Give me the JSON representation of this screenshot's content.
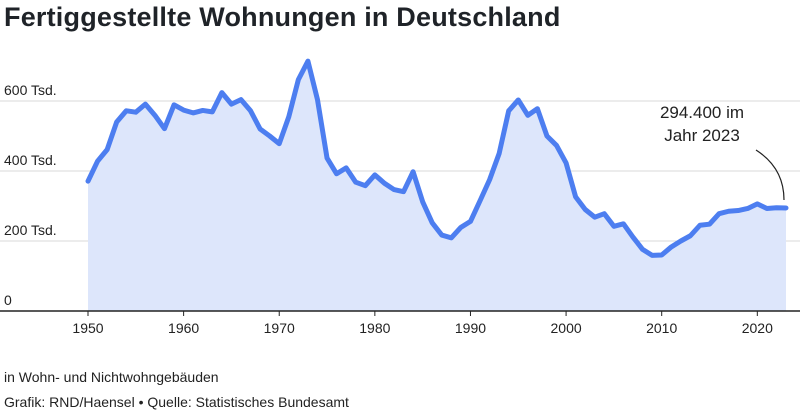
{
  "header": {
    "title": "Fertiggestellte Wohnungen in Deutschland"
  },
  "footer": {
    "note": "in Wohn- und Nichtwohngebäuden",
    "source": "Grafik: RND/Haensel • Quelle: Statistisches Bundesamt"
  },
  "chart_data": {
    "type": "area",
    "title": "Fertiggestellte Wohnungen in Deutschland",
    "xlabel": "",
    "ylabel": "",
    "xlim": [
      1950,
      2023
    ],
    "ylim": [
      0,
      760000
    ],
    "x_ticks": [
      1950,
      1960,
      1970,
      1980,
      1990,
      2000,
      2010,
      2020
    ],
    "y_ticks": [
      0,
      200000,
      400000,
      600000
    ],
    "y_tick_labels": [
      "0",
      "200 Tsd.",
      "400 Tsd.",
      "600 Tsd."
    ],
    "grid": true,
    "colors": {
      "line": "#4d7ef0",
      "fill": "#dde6fb",
      "grid": "#d9d9d9"
    },
    "annotation": {
      "x": 2023,
      "y": 294400,
      "lines": [
        "294.400 im",
        "Jahr 2023"
      ]
    },
    "x": [
      1950,
      1951,
      1952,
      1953,
      1954,
      1955,
      1956,
      1957,
      1958,
      1959,
      1960,
      1961,
      1962,
      1963,
      1964,
      1965,
      1966,
      1967,
      1968,
      1969,
      1970,
      1971,
      1972,
      1973,
      1974,
      1975,
      1976,
      1977,
      1978,
      1979,
      1980,
      1981,
      1982,
      1983,
      1984,
      1985,
      1986,
      1987,
      1988,
      1989,
      1990,
      1991,
      1992,
      1993,
      1994,
      1995,
      1996,
      1997,
      1998,
      1999,
      2000,
      2001,
      2002,
      2003,
      2004,
      2005,
      2006,
      2007,
      2008,
      2009,
      2010,
      2011,
      2012,
      2013,
      2014,
      2015,
      2016,
      2017,
      2018,
      2019,
      2020,
      2021,
      2022,
      2023
    ],
    "values": [
      371000,
      428000,
      461000,
      540000,
      572000,
      568000,
      591000,
      559000,
      521000,
      589000,
      574000,
      566000,
      573000,
      569000,
      624000,
      591000,
      604000,
      572000,
      520000,
      500000,
      478000,
      555000,
      661000,
      714000,
      604000,
      437000,
      392000,
      409000,
      368000,
      358000,
      389000,
      365000,
      347000,
      341000,
      398000,
      312000,
      252000,
      217000,
      209000,
      239000,
      256000,
      315000,
      375000,
      450000,
      572000,
      603000,
      559000,
      578000,
      500000,
      473000,
      423000,
      326000,
      290000,
      268000,
      278000,
      242000,
      249000,
      211000,
      176000,
      159000,
      160000,
      183000,
      200000,
      215000,
      245000,
      248000,
      278000,
      285000,
      287000,
      293000,
      306000,
      293000,
      295000,
      294400
    ]
  }
}
